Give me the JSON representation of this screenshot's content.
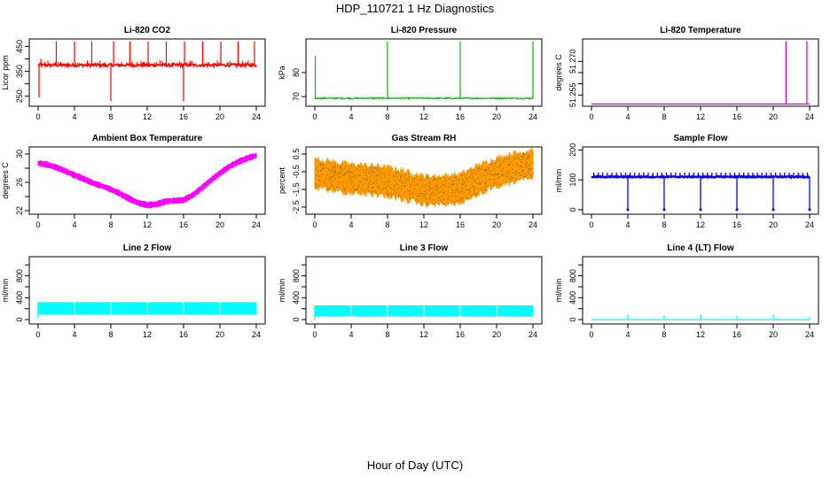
{
  "title": "HDP_110721  1 Hz Diagnostics",
  "x_caption": "Hour of Day (UTC)",
  "chart_data": [
    {
      "type": "line",
      "title": "Li-820 CO2",
      "ylabel": "Licor ppm",
      "color": "#ff0000",
      "xlim": [
        0,
        24
      ],
      "ylim": [
        210,
        480
      ],
      "xticks": [
        0,
        4,
        8,
        12,
        16,
        20,
        24
      ],
      "yticks": [
        250,
        300,
        350,
        400,
        450
      ],
      "yticklabels": [
        "250",
        "",
        "350",
        "",
        "450"
      ],
      "series": [
        {
          "name": "CO2",
          "baseline": 375,
          "noise": 6,
          "x": [
            0,
            0.2,
            0.6,
            1.2,
            2.1,
            3.1,
            3.9,
            5.0,
            5.9,
            7.0,
            7.9,
            8.0,
            8.3,
            9.1,
            10.0,
            11.0,
            12.1,
            13.0,
            14.1,
            15.0,
            15.9,
            16.0,
            16.1,
            17.1,
            18.0,
            19.0,
            20.1,
            21.0,
            22.1,
            23.1,
            23.7,
            24
          ],
          "spikes": [
            [
              0.1,
              245
            ],
            [
              0.3,
              400
            ],
            [
              2.0,
              470
            ],
            [
              4.0,
              470
            ],
            [
              5.9,
              470
            ],
            [
              8.0,
              230
            ],
            [
              8.3,
              470
            ],
            [
              10.1,
              470
            ],
            [
              12.1,
              470
            ],
            [
              14.1,
              470
            ],
            [
              16.0,
              230
            ],
            [
              16.1,
              470
            ],
            [
              18.1,
              470
            ],
            [
              20.1,
              470
            ],
            [
              22.0,
              470
            ],
            [
              23.8,
              470
            ]
          ]
        }
      ]
    },
    {
      "type": "line",
      "title": "Li-820 Pressure",
      "ylabel": "kPa",
      "color": "#00bb00",
      "xlim": [
        0,
        24
      ],
      "ylim": [
        66,
        94
      ],
      "xticks": [
        0,
        4,
        8,
        12,
        16,
        20,
        24
      ],
      "yticks": [
        70,
        80
      ],
      "yticklabels": [
        "70",
        "80"
      ],
      "series": [
        {
          "name": "Pressure",
          "baseline": 69.3,
          "noise": 0.3,
          "spikes": [
            [
              0.05,
              87
            ],
            [
              8.0,
              93
            ],
            [
              16.0,
              93
            ],
            [
              24.0,
              93
            ]
          ]
        }
      ]
    },
    {
      "type": "line",
      "title": "Li-820 Temperature",
      "ylabel": "degrees C",
      "color": "#cc00cc",
      "xlim": [
        0,
        24
      ],
      "ylim": [
        51.25,
        51.28
      ],
      "xticks": [
        0,
        4,
        8,
        12,
        16,
        20,
        24
      ],
      "yticks": [
        51.255,
        51.26,
        51.265,
        51.27
      ],
      "yticklabels": [
        "51.255",
        "",
        "",
        "51.270"
      ],
      "series": [
        {
          "name": "Temperature",
          "baseline": 51.251,
          "noise": 0,
          "spikes": [
            [
              21.4,
              51.279
            ],
            [
              23.7,
              51.279
            ]
          ]
        }
      ]
    },
    {
      "type": "line",
      "title": "Ambient Box Temperature",
      "ylabel": "degrees C",
      "color": "#ff00ff",
      "xlim": [
        0,
        24
      ],
      "ylim": [
        21.5,
        31
      ],
      "xticks": [
        0,
        4,
        8,
        12,
        16,
        20,
        24
      ],
      "yticks": [
        22,
        24,
        26,
        28,
        30
      ],
      "yticklabels": [
        "22",
        "",
        "26",
        "",
        "30"
      ],
      "series": [
        {
          "name": "Box T",
          "band": 0.7,
          "x": [
            0,
            1,
            2,
            3,
            4,
            5,
            6,
            7,
            8,
            9,
            10,
            11,
            12,
            13,
            14,
            15,
            16,
            17,
            18,
            19,
            20,
            21,
            22,
            23,
            24
          ],
          "y": [
            28.7,
            28.5,
            28.1,
            27.6,
            27.0,
            26.5,
            25.9,
            25.5,
            25.0,
            24.4,
            23.7,
            23.1,
            22.8,
            22.9,
            23.3,
            23.4,
            23.5,
            24.2,
            25.2,
            26.3,
            27.3,
            28.2,
            28.9,
            29.4,
            29.8
          ]
        }
      ]
    },
    {
      "type": "line",
      "title": "Gas Stream RH",
      "ylabel": "percent",
      "color": "#ff9900",
      "xlim": [
        0,
        24
      ],
      "ylim": [
        -2.9,
        0.9
      ],
      "xticks": [
        0,
        4,
        8,
        12,
        16,
        20,
        24
      ],
      "yticks": [
        -2.5,
        -1.5,
        -0.5,
        0.5
      ],
      "yticklabels": [
        "-2.5",
        "-1.5",
        "-0.5",
        "0.5"
      ],
      "series": [
        {
          "name": "RH",
          "band": 1.55,
          "dotcolor": "#555500",
          "x": [
            0,
            2,
            4,
            6,
            8,
            10,
            12,
            14,
            16,
            18,
            20,
            22,
            24
          ],
          "y": [
            -0.6,
            -0.75,
            -0.9,
            -0.95,
            -1.05,
            -1.3,
            -1.55,
            -1.55,
            -1.45,
            -0.95,
            -0.55,
            -0.25,
            -0.05
          ]
        }
      ]
    },
    {
      "type": "line",
      "title": "Sample Flow",
      "ylabel": "ml/min",
      "color": "#0000ff",
      "xlim": [
        0,
        24
      ],
      "ylim": [
        -15,
        210
      ],
      "xticks": [
        0,
        4,
        8,
        12,
        16,
        20,
        24
      ],
      "yticks": [
        0,
        100,
        200
      ],
      "yticklabels": [
        "0",
        "100",
        "200"
      ],
      "series": [
        {
          "name": "Sample",
          "baseline": 110,
          "upper": 120,
          "drops": [
            4.0,
            8.0,
            12.0,
            16.0,
            20.0,
            24.0
          ],
          "steps": [
            0,
            0.8,
            4.1,
            4.9,
            8.1,
            9.0,
            12.1,
            12.9,
            16.1,
            16.9,
            20.1,
            20.9
          ]
        }
      ]
    },
    {
      "type": "area",
      "title": "Line 2 Flow",
      "ylabel": "ml/min",
      "color": "#00ffff",
      "xlim": [
        0,
        24
      ],
      "ylim": [
        -80,
        1150
      ],
      "xticks": [
        0,
        4,
        8,
        12,
        16,
        20,
        24
      ],
      "yticks": [
        0,
        200,
        400,
        600,
        800,
        1000
      ],
      "yticklabels": [
        "0",
        "",
        "400",
        "",
        "800",
        ""
      ],
      "series": [
        {
          "name": "Line 2",
          "low": 90,
          "high": 320,
          "gaps": [
            4,
            8,
            12,
            16,
            20
          ]
        }
      ]
    },
    {
      "type": "area",
      "title": "Line 3 Flow",
      "ylabel": "ml/min",
      "color": "#00ffff",
      "xlim": [
        0,
        24
      ],
      "ylim": [
        -80,
        1150
      ],
      "xticks": [
        0,
        4,
        8,
        12,
        16,
        20,
        24
      ],
      "yticks": [
        0,
        200,
        400,
        600,
        800,
        1000
      ],
      "yticklabels": [
        "0",
        "",
        "400",
        "",
        "800",
        ""
      ],
      "series": [
        {
          "name": "Line 3",
          "low": 60,
          "high": 260,
          "gaps": [
            4,
            8,
            12,
            16,
            20
          ]
        }
      ]
    },
    {
      "type": "line",
      "title": "Line 4 (LT) Flow",
      "ylabel": "ml/min",
      "color": "#00ffff",
      "xlim": [
        0,
        24
      ],
      "ylim": [
        -80,
        1150
      ],
      "xticks": [
        0,
        4,
        8,
        12,
        16,
        20,
        24
      ],
      "yticks": [
        0,
        200,
        400,
        600,
        800,
        1000
      ],
      "yticklabels": [
        "0",
        "",
        "400",
        "",
        "800",
        ""
      ],
      "series": [
        {
          "name": "Line 4",
          "baseline": 0,
          "spikes": [
            [
              4.0,
              100
            ],
            [
              8.0,
              80
            ],
            [
              12.0,
              100
            ],
            [
              16.0,
              70
            ],
            [
              20.0,
              100
            ],
            [
              24.0,
              60
            ]
          ]
        }
      ]
    }
  ]
}
